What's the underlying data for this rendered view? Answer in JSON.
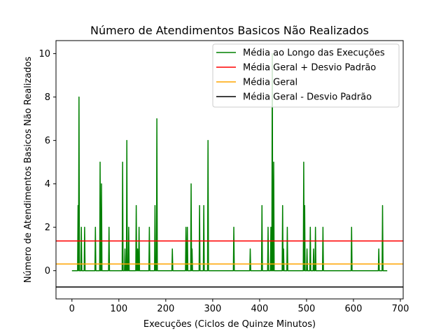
{
  "chart_data": {
    "type": "line",
    "title": "Número de Atendimentos Basicos Não Realizados",
    "xlabel": "Execuções (Ciclos de Quinze Minutos)",
    "ylabel": "Número de Atendimentos Basicos Não Realizados",
    "xlim": [
      -34,
      706
    ],
    "ylim": [
      -1.3,
      10.6
    ],
    "xticks": [
      0,
      100,
      200,
      300,
      400,
      500,
      600,
      700
    ],
    "yticks": [
      0,
      2,
      4,
      6,
      8,
      10
    ],
    "grid": false,
    "legend_position": "top-right",
    "series": [
      {
        "name": "Média ao Longo das Execuções",
        "kind": "line",
        "color": "#008000",
        "x_start": 0,
        "x_end": 672,
        "baseline": 0,
        "spikes": [
          {
            "x": 13,
            "y": 3
          },
          {
            "x": 15,
            "y": 8
          },
          {
            "x": 20,
            "y": 2
          },
          {
            "x": 27,
            "y": 2
          },
          {
            "x": 50,
            "y": 2
          },
          {
            "x": 60,
            "y": 5
          },
          {
            "x": 63,
            "y": 4
          },
          {
            "x": 79,
            "y": 2
          },
          {
            "x": 108,
            "y": 5
          },
          {
            "x": 113,
            "y": 1
          },
          {
            "x": 117,
            "y": 6
          },
          {
            "x": 121,
            "y": 2
          },
          {
            "x": 137,
            "y": 3
          },
          {
            "x": 140,
            "y": 1
          },
          {
            "x": 143,
            "y": 2
          },
          {
            "x": 165,
            "y": 2
          },
          {
            "x": 177,
            "y": 3
          },
          {
            "x": 181,
            "y": 7
          },
          {
            "x": 214,
            "y": 1
          },
          {
            "x": 243,
            "y": 2
          },
          {
            "x": 246,
            "y": 2
          },
          {
            "x": 254,
            "y": 4
          },
          {
            "x": 256,
            "y": 1
          },
          {
            "x": 272,
            "y": 3
          },
          {
            "x": 281,
            "y": 3
          },
          {
            "x": 290,
            "y": 6
          },
          {
            "x": 345,
            "y": 2
          },
          {
            "x": 380,
            "y": 1
          },
          {
            "x": 405,
            "y": 3
          },
          {
            "x": 418,
            "y": 2
          },
          {
            "x": 424,
            "y": 2
          },
          {
            "x": 427,
            "y": 10
          },
          {
            "x": 430,
            "y": 5
          },
          {
            "x": 449,
            "y": 3
          },
          {
            "x": 451,
            "y": 1
          },
          {
            "x": 459,
            "y": 2
          },
          {
            "x": 494,
            "y": 5
          },
          {
            "x": 496,
            "y": 3
          },
          {
            "x": 501,
            "y": 1
          },
          {
            "x": 508,
            "y": 2
          },
          {
            "x": 515,
            "y": 1
          },
          {
            "x": 519,
            "y": 2
          },
          {
            "x": 535,
            "y": 2
          },
          {
            "x": 596,
            "y": 2
          },
          {
            "x": 654,
            "y": 1
          },
          {
            "x": 662,
            "y": 3
          }
        ]
      },
      {
        "name": "Média Geral + Desvio Padrão",
        "kind": "hline",
        "y": 1.37,
        "color": "#ff0000"
      },
      {
        "name": "Média Geral",
        "kind": "hline",
        "y": 0.31,
        "color": "#ffa500"
      },
      {
        "name": "Média Geral - Desvio Padrão",
        "kind": "hline",
        "y": -0.75,
        "color": "#000000"
      }
    ]
  }
}
